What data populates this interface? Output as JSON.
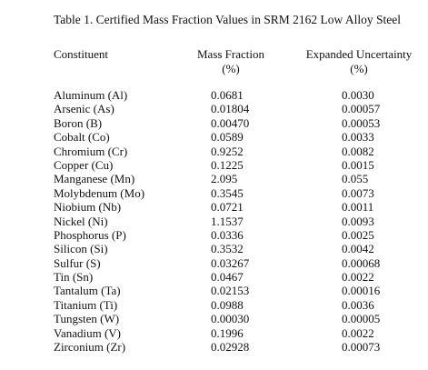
{
  "table": {
    "caption": "Table 1.  Certified Mass Fraction Values in SRM 2162 Low Alloy Steel",
    "headers": {
      "constituent": "Constituent",
      "mass_fraction": [
        "Mass Fraction",
        "(%)"
      ],
      "uncertainty": [
        "Expanded Uncertainty",
        "(%)"
      ]
    },
    "rows": [
      {
        "constituent": "Aluminum (Al)",
        "mass_fraction": "0.0681",
        "uncertainty": "0.0030"
      },
      {
        "constituent": "Arsenic (As)",
        "mass_fraction": "0.01804",
        "uncertainty": "0.00057"
      },
      {
        "constituent": "Boron (B)",
        "mass_fraction": "0.00470",
        "uncertainty": "0.00053"
      },
      {
        "constituent": "Cobalt (Co)",
        "mass_fraction": "0.0589",
        "uncertainty": "0.0033"
      },
      {
        "constituent": "Chromium (Cr)",
        "mass_fraction": "0.9252",
        "uncertainty": "0.0082"
      },
      {
        "constituent": "Copper (Cu)",
        "mass_fraction": "0.1225",
        "uncertainty": "0.0015"
      },
      {
        "constituent": "Manganese (Mn)",
        "mass_fraction": "2.095",
        "uncertainty": "0.055"
      },
      {
        "constituent": "Molybdenum (Mo)",
        "mass_fraction": "0.3545",
        "uncertainty": "0.0073"
      },
      {
        "constituent": "Niobium (Nb)",
        "mass_fraction": "0.0721",
        "uncertainty": "0.0011"
      },
      {
        "constituent": "Nickel (Ni)",
        "mass_fraction": "1.1537",
        "uncertainty": "0.0093"
      },
      {
        "constituent": "Phosphorus (P)",
        "mass_fraction": "0.0336",
        "uncertainty": "0.0025"
      },
      {
        "constituent": "Silicon (Si)",
        "mass_fraction": "0.3532",
        "uncertainty": "0.0042"
      },
      {
        "constituent": "Sulfur (S)",
        "mass_fraction": "0.03267",
        "uncertainty": "0.00068"
      },
      {
        "constituent": "Tin (Sn)",
        "mass_fraction": "0.0467",
        "uncertainty": "0.0022"
      },
      {
        "constituent": "Tantalum (Ta)",
        "mass_fraction": "0.02153",
        "uncertainty": "0.00016"
      },
      {
        "constituent": "Titanium (Ti)",
        "mass_fraction": "0.0988",
        "uncertainty": "0.0036"
      },
      {
        "constituent": "Tungsten (W)",
        "mass_fraction": "0.00030",
        "uncertainty": "0.00005"
      },
      {
        "constituent": "Vanadium (V)",
        "mass_fraction": "0.1996",
        "uncertainty": "0.0022"
      },
      {
        "constituent": "Zirconium (Zr)",
        "mass_fraction": "0.02928",
        "uncertainty": "0.00073"
      }
    ]
  }
}
